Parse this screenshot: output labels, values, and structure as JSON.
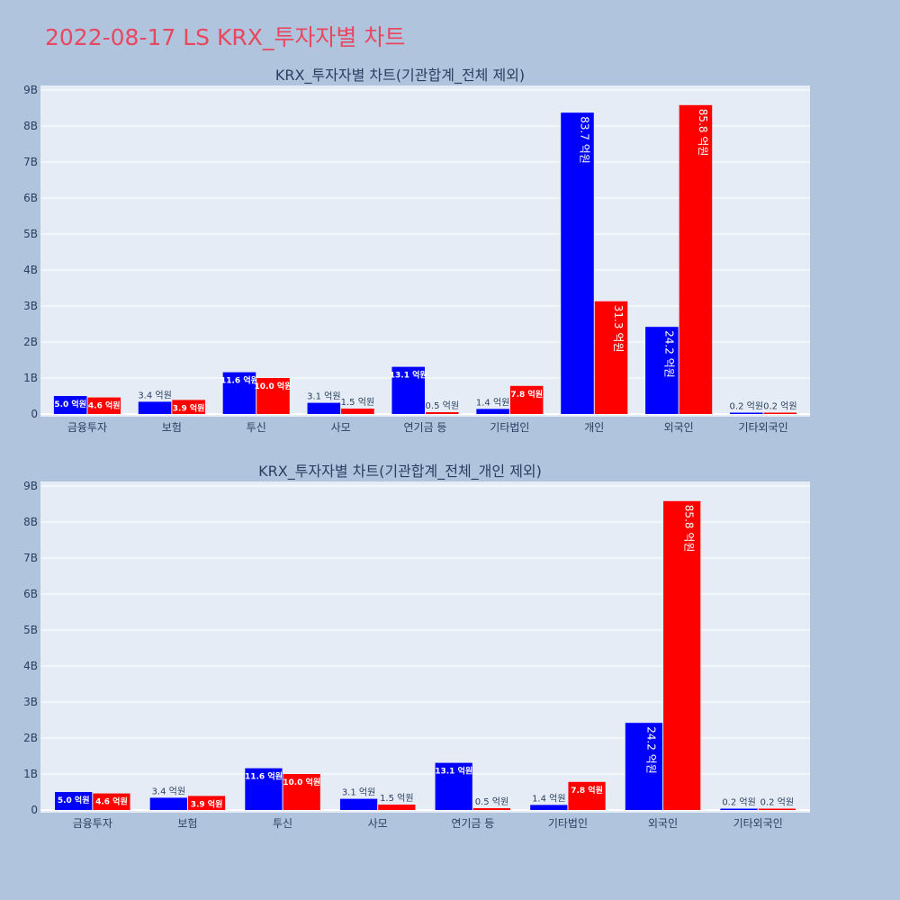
{
  "page_title": "2022-08-17 LS KRX_투자자별 차트",
  "colors": {
    "buy": "#0000ff",
    "sell": "#ff0000",
    "plot_bg": "#e5ecf6",
    "page_bg": "#b0c4de",
    "title": "#e8485f"
  },
  "chart_data": [
    {
      "type": "bar",
      "title": "KRX_투자자별 차트(기관합계_전체 제외)",
      "categories": [
        "금융투자",
        "보험",
        "투신",
        "사모",
        "연기금 등",
        "기타법인",
        "개인",
        "외국인",
        "기타외국인"
      ],
      "series": [
        {
          "values": [
            0.5,
            0.34,
            1.16,
            0.31,
            1.31,
            0.14,
            8.37,
            2.42,
            0.02
          ],
          "labels": [
            "5.0 억원",
            "3.4 억원",
            "11.6 억원",
            "3.1 억원",
            "13.1 억원",
            "1.4 억원",
            "83.7 억원",
            "24.2 억원",
            "0.2 억원"
          ]
        },
        {
          "values": [
            0.46,
            0.39,
            1.0,
            0.15,
            0.05,
            0.78,
            3.13,
            8.58,
            0.02
          ],
          "labels": [
            "4.6 억원",
            "3.9 억원",
            "10.0 억원",
            "1.5 억원",
            "0.5 억원",
            "7.8 억원",
            "31.3 억원",
            "85.8 억원",
            "0.2 억원"
          ]
        }
      ],
      "yticks": [
        "0",
        "1B",
        "2B",
        "3B",
        "4B",
        "5B",
        "6B",
        "7B",
        "8B",
        "9B"
      ],
      "ylim": [
        0,
        9
      ],
      "grid": true,
      "legend": "none"
    },
    {
      "type": "bar",
      "title": "KRX_투자자별 차트(기관합계_전체_개인 제외)",
      "categories": [
        "금융투자",
        "보험",
        "투신",
        "사모",
        "연기금 등",
        "기타법인",
        "외국인",
        "기타외국인"
      ],
      "series": [
        {
          "values": [
            0.5,
            0.34,
            1.16,
            0.31,
            1.31,
            0.14,
            2.42,
            0.02
          ],
          "labels": [
            "5.0 억원",
            "3.4 억원",
            "11.6 억원",
            "3.1 억원",
            "13.1 억원",
            "1.4 억원",
            "24.2 억원",
            "0.2 억원"
          ]
        },
        {
          "values": [
            0.46,
            0.39,
            1.0,
            0.15,
            0.05,
            0.78,
            8.58,
            0.02
          ],
          "labels": [
            "4.6 억원",
            "3.9 억원",
            "10.0 억원",
            "1.5 억원",
            "0.5 억원",
            "7.8 억원",
            "85.8 억원",
            "0.2 억원"
          ]
        }
      ],
      "yticks": [
        "0",
        "1B",
        "2B",
        "3B",
        "4B",
        "5B",
        "6B",
        "7B",
        "8B",
        "9B"
      ],
      "ylim": [
        0,
        9
      ],
      "grid": true,
      "legend": "none"
    }
  ]
}
